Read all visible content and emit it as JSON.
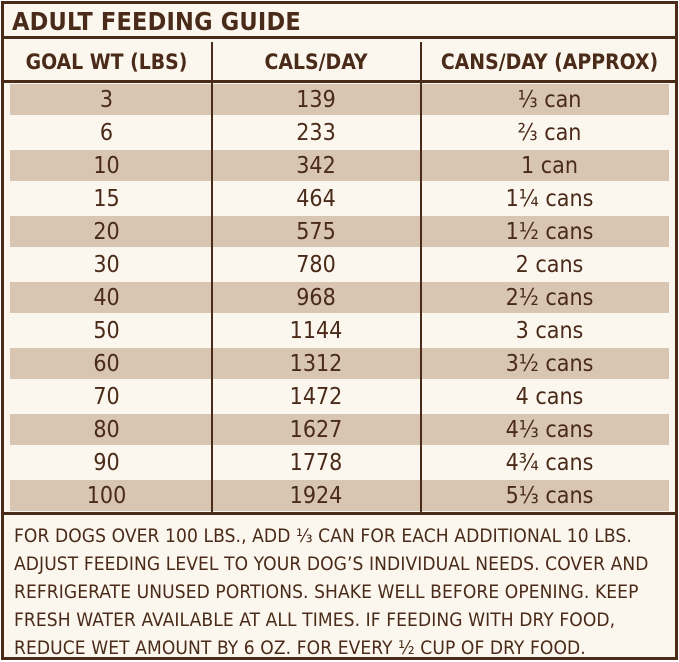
{
  "title": "ADULT FEEDING GUIDE",
  "headers": {
    "goal_wt": "GOAL WT (LBS)",
    "cals": "CALS/DAY",
    "cans": "CANS/DAY (APPROX)"
  },
  "rows": [
    {
      "wt": "3",
      "cals": "139",
      "cans": "⅓ can"
    },
    {
      "wt": "6",
      "cals": "233",
      "cans": "⅔ can"
    },
    {
      "wt": "10",
      "cals": "342",
      "cans": "1 can"
    },
    {
      "wt": "15",
      "cals": "464",
      "cans": "1¼ cans"
    },
    {
      "wt": "20",
      "cals": "575",
      "cans": "1½ cans"
    },
    {
      "wt": "30",
      "cals": "780",
      "cans": "2 cans"
    },
    {
      "wt": "40",
      "cals": "968",
      "cans": "2½ cans"
    },
    {
      "wt": "50",
      "cals": "1144",
      "cans": "3 cans"
    },
    {
      "wt": "60",
      "cals": "1312",
      "cans": "3½ cans"
    },
    {
      "wt": "70",
      "cals": "1472",
      "cans": "4 cans"
    },
    {
      "wt": "80",
      "cals": "1627",
      "cans": "4⅓ cans"
    },
    {
      "wt": "90",
      "cals": "1778",
      "cans": "4¾ cans"
    },
    {
      "wt": "100",
      "cals": "1924",
      "cans": "5⅓ cans"
    }
  ],
  "footer_text": "For dogs over 100 lbs., add ⅓ can for each additional 10 lbs. Adjust feeding level to your dog’s individual needs. Cover and refrigerate unused portions. Shake well before opening. Keep fresh water available at all times. If feeding with dry food, reduce wet amount by 6 oz. for every ½ cup of dry food.",
  "colors": {
    "ink": "#4a2a18",
    "shade": "#d8c6b2",
    "paper": "#fbf7ef"
  }
}
